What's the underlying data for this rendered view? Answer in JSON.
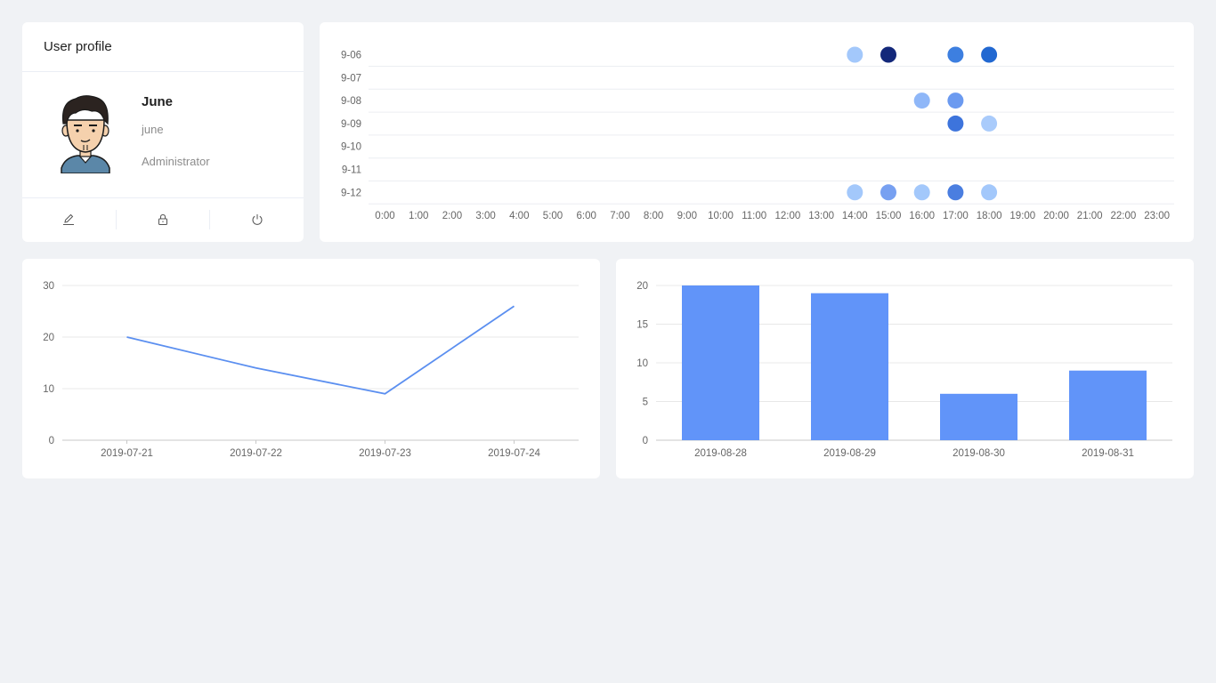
{
  "profile": {
    "title": "User profile",
    "name": "June",
    "login": "june",
    "role": "Administrator",
    "actions": [
      "edit-icon",
      "lock-icon",
      "power-icon"
    ]
  },
  "punch": {
    "type": "scatter",
    "rows": [
      "9-06",
      "9-07",
      "9-08",
      "9-09",
      "9-10",
      "9-11",
      "9-12"
    ],
    "hours": [
      "0:00",
      "1:00",
      "2:00",
      "3:00",
      "4:00",
      "5:00",
      "6:00",
      "7:00",
      "8:00",
      "9:00",
      "10:00",
      "11:00",
      "12:00",
      "13:00",
      "14:00",
      "15:00",
      "16:00",
      "17:00",
      "18:00",
      "19:00",
      "20:00",
      "21:00",
      "22:00",
      "23:00"
    ],
    "points": [
      {
        "row": "9-06",
        "hour": 14,
        "color": "#a3c8fb"
      },
      {
        "row": "9-06",
        "hour": 15,
        "color": "#13287a"
      },
      {
        "row": "9-06",
        "hour": 17,
        "color": "#3d7fe0"
      },
      {
        "row": "9-06",
        "hour": 18,
        "color": "#2268d1"
      },
      {
        "row": "9-08",
        "hour": 16,
        "color": "#8fb7f8"
      },
      {
        "row": "9-08",
        "hour": 17,
        "color": "#6b9af0"
      },
      {
        "row": "9-09",
        "hour": 17,
        "color": "#3d74dc"
      },
      {
        "row": "9-09",
        "hour": 18,
        "color": "#a9cbfb"
      },
      {
        "row": "9-12",
        "hour": 14,
        "color": "#a3c8fb"
      },
      {
        "row": "9-12",
        "hour": 15,
        "color": "#77a0f1"
      },
      {
        "row": "9-12",
        "hour": 16,
        "color": "#a3c8fb"
      },
      {
        "row": "9-12",
        "hour": 17,
        "color": "#4a7ee0"
      },
      {
        "row": "9-12",
        "hour": 18,
        "color": "#a3c8fb"
      }
    ]
  },
  "chart_data": [
    {
      "type": "line",
      "categories": [
        "2019-07-21",
        "2019-07-22",
        "2019-07-23",
        "2019-07-24"
      ],
      "values": [
        20,
        14,
        9,
        26
      ],
      "ylim": [
        0,
        30
      ],
      "yticks": [
        0,
        10,
        20,
        30
      ],
      "color": "#5b8ff0",
      "grid": true
    },
    {
      "type": "bar",
      "categories": [
        "2019-08-28",
        "2019-08-29",
        "2019-08-30",
        "2019-08-31"
      ],
      "values": [
        20,
        19,
        6,
        9
      ],
      "ylim": [
        0,
        20
      ],
      "yticks": [
        0,
        5,
        10,
        15,
        20
      ],
      "color": "#6194f9",
      "grid": true
    }
  ]
}
